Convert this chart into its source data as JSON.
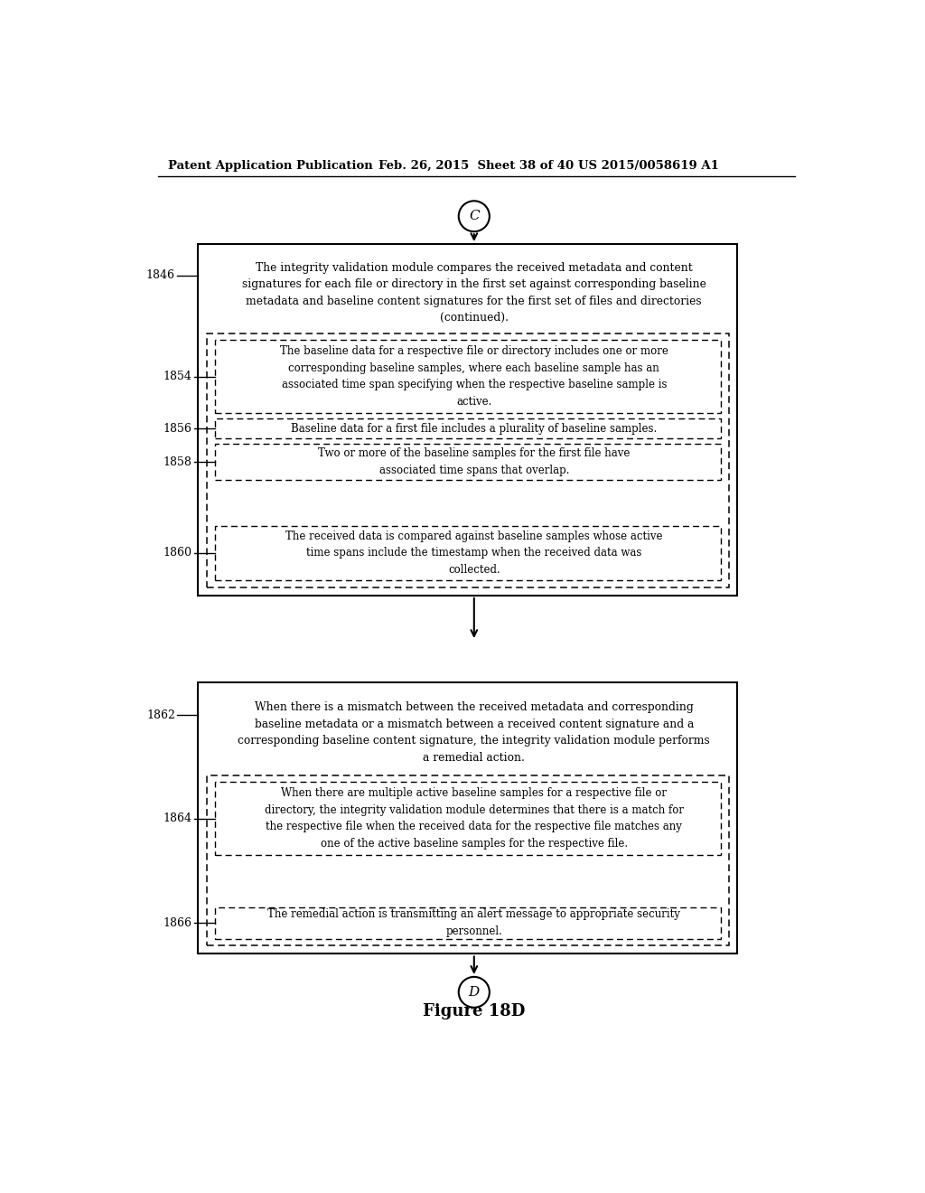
{
  "header_left": "Patent Application Publication",
  "header_mid": "Feb. 26, 2015  Sheet 38 of 40",
  "header_right": "US 2015/0058619 A1",
  "figure_label": "Figure 18D",
  "connector_top": "C",
  "connector_bottom": "D",
  "bg_color": "#ffffff",
  "box1_label": "1846",
  "box1_text": "The integrity validation module compares the received metadata and content\nsignatures for each file or directory in the first set against corresponding baseline\nmetadata and baseline content signatures for the first set of files and directories\n(continued).",
  "box1_inner_label": "1854",
  "box1_inner_text": "The baseline data for a respective file or directory includes one or more\ncorresponding baseline samples, where each baseline sample has an\nassociated time span specifying when the respective baseline sample is\nactive.",
  "box1_inner2_label": "1856",
  "box1_inner2_text": "Baseline data for a first file includes a plurality of baseline samples.",
  "box1_inner3_label": "1858",
  "box1_inner3_text": "Two or more of the baseline samples for the first file have\nassociated time spans that overlap.",
  "box1_inner4_label": "1860",
  "box1_inner4_text": "The received data is compared against baseline samples whose active\ntime spans include the timestamp when the received data was\ncollected.",
  "box2_label": "1862",
  "box2_text": "When there is a mismatch between the received metadata and corresponding\nbaseline metadata or a mismatch between a received content signature and a\ncorresponding baseline content signature, the integrity validation module performs\na remedial action.",
  "box2_inner_label": "1864",
  "box2_inner_text": "When there are multiple active baseline samples for a respective file or\ndirectory, the integrity validation module determines that there is a match for\nthe respective file when the received data for the respective file matches any\none of the active baseline samples for the respective file.",
  "box2_inner2_label": "1866",
  "box2_inner2_text": "The remedial action is transmitting an alert message to appropriate security\npersonnel."
}
